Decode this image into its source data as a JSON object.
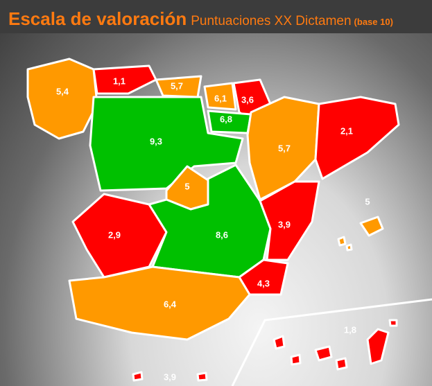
{
  "header": {
    "title": "Escala de valoración",
    "subtitle": "Puntuaciones XX Dictamen",
    "subtitle_note": "(base 10)"
  },
  "map": {
    "regions": [
      {
        "label": "5,4",
        "color": "#ff9900"
      },
      {
        "label": "1,1",
        "color": "#ff0000"
      },
      {
        "label": "5,7",
        "color": "#ff9900"
      },
      {
        "label": "3,6",
        "color": "#ff0000"
      },
      {
        "label": "6,1",
        "color": "#ff9900"
      },
      {
        "label": "6,8",
        "color": "#00c000"
      },
      {
        "label": "9,3",
        "color": "#00c000"
      },
      {
        "label": "5,7",
        "color": "#ff9900"
      },
      {
        "label": "2,1",
        "color": "#ff0000"
      },
      {
        "label": "5",
        "color": "#ff9900"
      },
      {
        "label": "2,9",
        "color": "#ff0000"
      },
      {
        "label": "8,6",
        "color": "#00c000"
      },
      {
        "label": "3,9",
        "color": "#ff0000"
      },
      {
        "label": "4,3",
        "color": "#ff0000"
      },
      {
        "label": "6,4",
        "color": "#ff9900"
      },
      {
        "label": "5",
        "color": "#ff9900"
      },
      {
        "label": "1,8",
        "color": "#ff0000"
      },
      {
        "label": "3,9",
        "color": "#ff0000"
      }
    ]
  }
}
